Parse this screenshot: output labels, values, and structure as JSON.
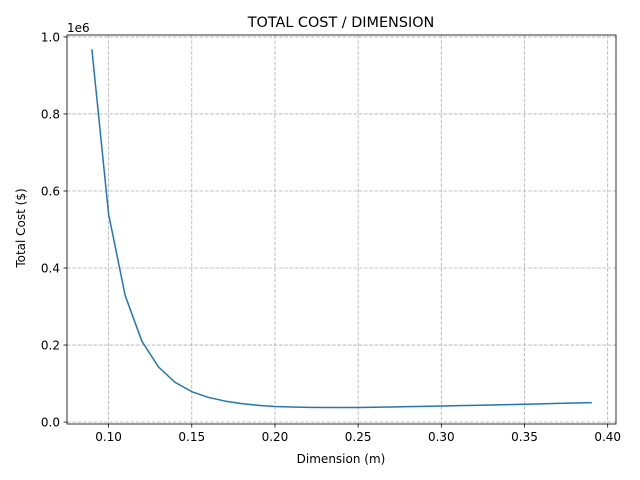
{
  "chart_data": {
    "type": "line",
    "title": "TOTAL COST / DIMENSION",
    "xlabel": "Dimension (m)",
    "ylabel": "Total Cost ($)",
    "y_offset_label": "1e6",
    "xlim": [
      0.075,
      0.405
    ],
    "ylim": [
      -0.005,
      1.005
    ],
    "y_scale_factor": 1000000,
    "grid": true,
    "x_ticks": [
      0.1,
      0.15,
      0.2,
      0.25,
      0.3,
      0.35,
      0.4
    ],
    "x_tick_labels": [
      "0.10",
      "0.15",
      "0.20",
      "0.25",
      "0.30",
      "0.35",
      "0.40"
    ],
    "y_ticks": [
      0.0,
      0.2,
      0.4,
      0.6,
      0.8,
      1.0
    ],
    "y_tick_labels": [
      "0.0",
      "0.2",
      "0.4",
      "0.6",
      "0.8",
      "1.0"
    ],
    "colors": {
      "series": "#1f77b4",
      "grid": "#b0b0b0"
    },
    "series": [
      {
        "x": [
          0.09,
          0.1,
          0.11,
          0.12,
          0.13,
          0.14,
          0.15,
          0.16,
          0.17,
          0.18,
          0.19,
          0.2,
          0.21,
          0.22,
          0.23,
          0.24,
          0.25,
          0.26,
          0.27,
          0.28,
          0.29,
          0.3,
          0.31,
          0.32,
          0.33,
          0.34,
          0.35,
          0.36,
          0.37,
          0.38,
          0.39
        ],
        "y": [
          966000,
          540000,
          328000,
          210000,
          143000,
          103000,
          79000,
          64000,
          54500,
          48000,
          43500,
          40500,
          39000,
          38200,
          37800,
          37700,
          38000,
          38500,
          39200,
          40000,
          40800,
          41700,
          42600,
          43500,
          44400,
          45400,
          46400,
          47400,
          48400,
          49400,
          50500
        ]
      }
    ]
  }
}
